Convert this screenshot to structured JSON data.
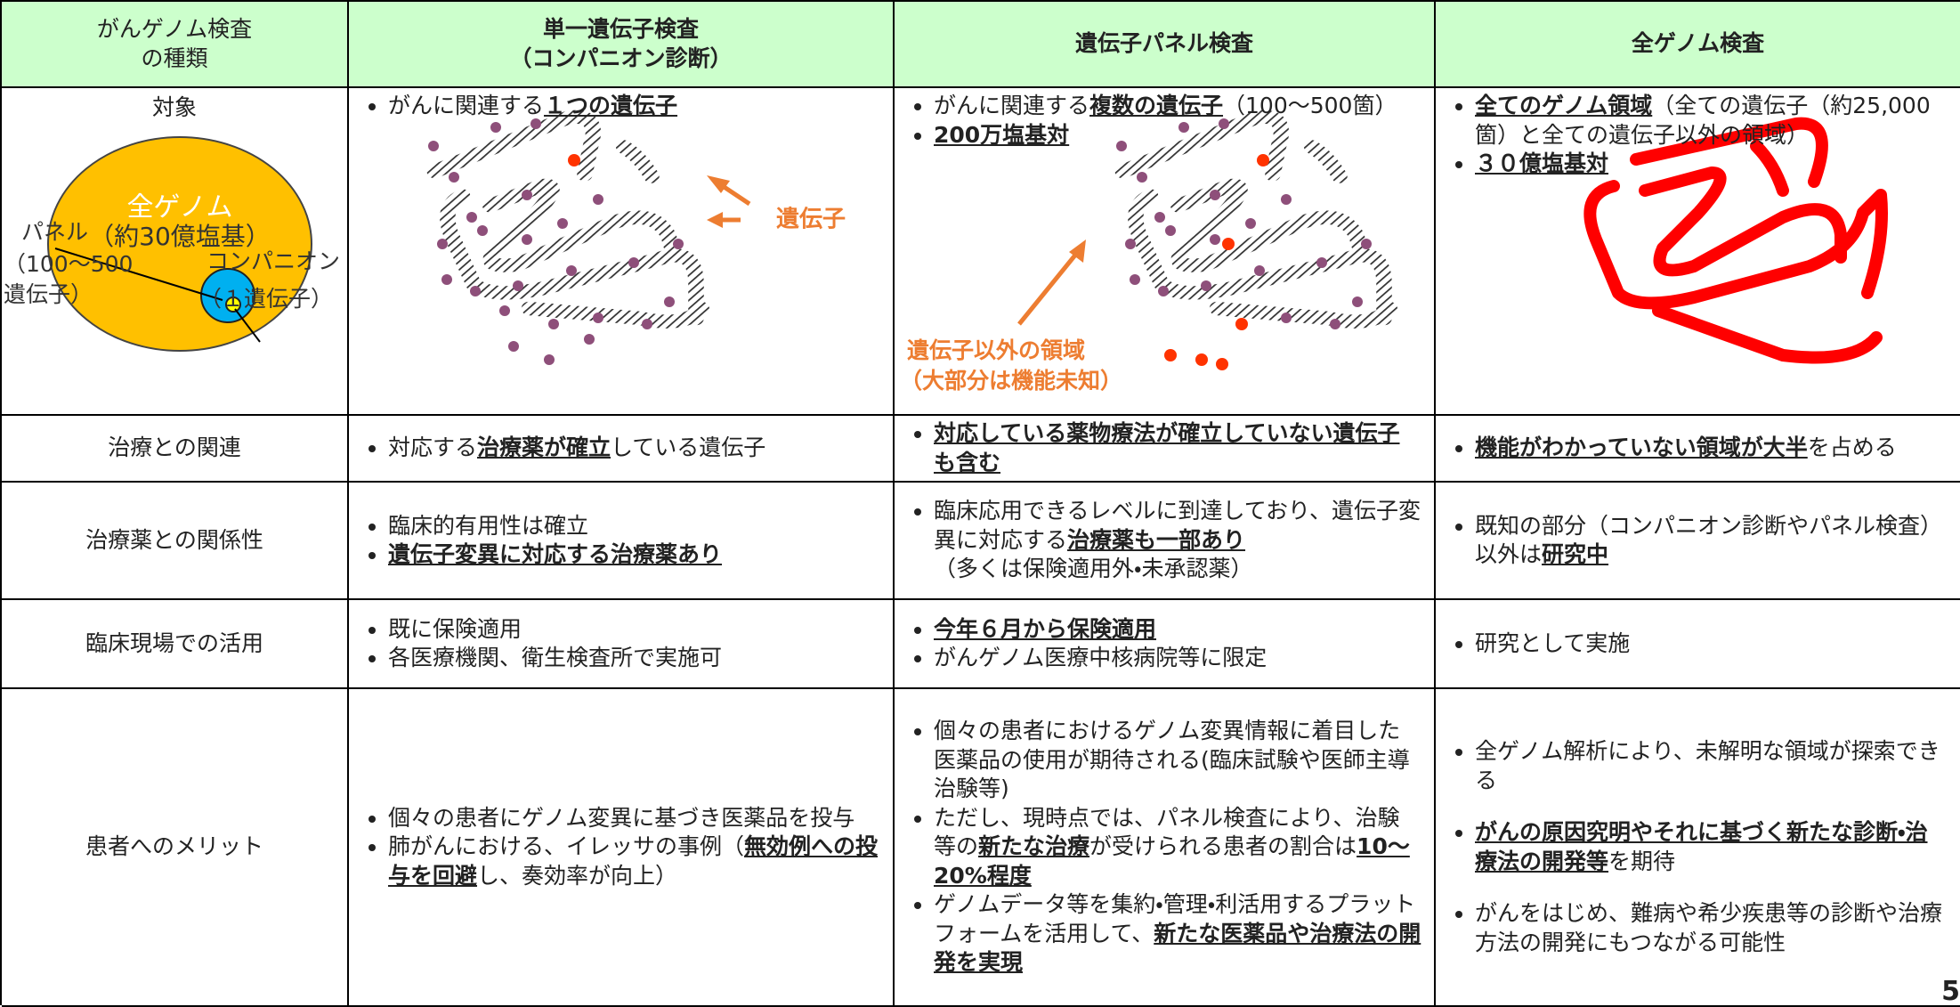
{
  "table": {
    "header": [
      "がんゲノム検査\nの種類",
      "単一遺伝子検査\n（コンパニオン診断）",
      "遺伝子パネル検査",
      "全ゲノム検査"
    ],
    "rows": [
      {
        "label": "対象",
        "cells": [
          [
            [
              "がんに関連する",
              {
                "text": "１つの遺伝子",
                "em": true
              }
            ]
          ],
          [
            [
              "がんに関連する",
              {
                "text": "複数の遺伝子",
                "em": true
              },
              "（100～500箇）"
            ],
            [
              {
                "text": "200万塩基対",
                "em": true
              }
            ]
          ],
          [
            [
              {
                "text": "全てのゲノム領域",
                "em": true
              },
              "（全ての遺伝子（約25,000箇）と全ての遺伝子以外の領域）"
            ],
            [
              {
                "text": "３０億塩基対",
                "em": true
              }
            ]
          ]
        ]
      },
      {
        "label": "治療との関連",
        "cells": [
          [
            [
              "対応する",
              {
                "text": "治療薬が確立",
                "em": true
              },
              "している遺伝子"
            ]
          ],
          [
            [
              {
                "text": "対応している薬物療法が確立していない遺伝子も含む",
                "em": true
              }
            ]
          ],
          [
            [
              {
                "text": "機能がわかっていない領域が大半",
                "em": true
              },
              "を占める"
            ]
          ]
        ]
      },
      {
        "label": "治療薬との関係性",
        "cells": [
          [
            [
              "臨床的有用性は確立"
            ],
            [
              {
                "text": "遺伝子変異に対応する治療薬あり",
                "em": true
              }
            ]
          ],
          [
            [
              "臨床応用できるレベルに到達しており、遺伝子変異に対応する",
              {
                "text": "治療薬も一部あり",
                "em": true
              },
              "\n（多くは保険適用外・未承認薬）"
            ]
          ],
          [
            [
              "既知の部分（コンパニオン診断やパネル検査）以外は",
              {
                "text": "研究中",
                "em": true
              }
            ]
          ]
        ]
      },
      {
        "label": "臨床現場での活用",
        "cells": [
          [
            [
              "既に保険適用"
            ],
            [
              "各医療機関、衛生検査所で実施可"
            ]
          ],
          [
            [
              {
                "text": "今年６月から保険適用",
                "em": true
              }
            ],
            [
              "がんゲノム医療中核病院等に限定"
            ]
          ],
          [
            [
              "研究として実施"
            ]
          ]
        ]
      },
      {
        "label": "患者へのメリット",
        "cells": [
          [
            [
              "個々の患者にゲノム変異に基づき医薬品を投与"
            ],
            [
              "肺がんにおける、イレッサの事例（",
              {
                "text": "無効例への投与を回避",
                "em": true
              },
              "し、奏効率が向上）"
            ]
          ],
          [
            [
              "個々の患者におけるゲノム変異情報に着目した医薬品の使用が期待される(臨床試験や医師主導治験等)"
            ],
            [
              "ただし、現時点では、パネル検査により、治験等の",
              {
                "text": "新たな治療",
                "em": true
              },
              "が受けられる患者の割合は",
              {
                "text": "10～20%程度",
                "em": true
              }
            ],
            [
              "ゲノムデータ等を集約・管理・利活用するプラットフォームを活用して、",
              {
                "text": "新たな医薬品や治療法の開発を実現",
                "em": true
              }
            ]
          ],
          [
            [
              "全ゲノム解析により、未解明な領域が探索できる"
            ],
            [
              {
                "text": "がんの原因究明やそれに基づく新たな診断・治療法の開発等",
                "em": true
              },
              "を期待"
            ],
            [
              "がんをはじめ、難病や希少疾患等の診断や治療方法の開発にもつながる可能性"
            ]
          ]
        ]
      }
    ]
  },
  "diagrams": {
    "scope": {
      "genome": "全ゲノム",
      "genome_size": "（約30億塩基）",
      "panel": "パネル",
      "panel_range": "（100～500",
      "panel_unit": "遺伝子）",
      "companion": "コンパニオン",
      "companion_unit": "（１遺伝子）"
    },
    "gene_label": "遺伝子",
    "noncoding_label": "遺伝子以外の領域",
    "noncoding_note": "（大部分は機能未知）"
  },
  "page_number": "5"
}
